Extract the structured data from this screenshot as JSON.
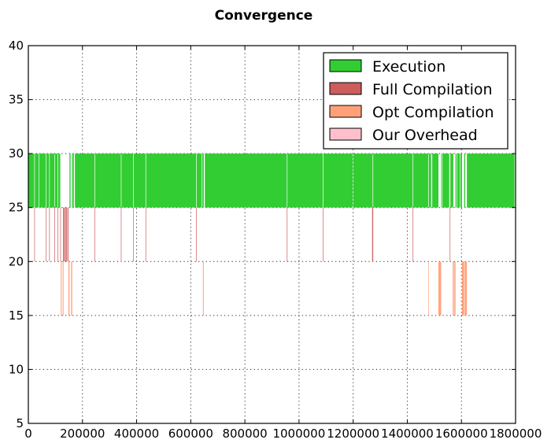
{
  "chart_data": {
    "type": "bar",
    "subtype": "broken-barh",
    "title": "Convergence",
    "xlabel": "",
    "ylabel": "",
    "xlim": [
      0,
      1800000
    ],
    "ylim": [
      5,
      40
    ],
    "xticks": [
      0,
      200000,
      400000,
      600000,
      800000,
      1000000,
      1200000,
      1400000,
      1600000,
      1800000
    ],
    "xtick_labels": [
      "0",
      "200000",
      "400000",
      "600000",
      "800000",
      "1000000",
      "1200000",
      "1400000",
      "1600000",
      "1800000"
    ],
    "yticks": [
      5,
      10,
      15,
      20,
      25,
      30,
      35,
      40
    ],
    "ytick_labels": [
      "5",
      "10",
      "15",
      "20",
      "25",
      "30",
      "35",
      "40"
    ],
    "grid": true,
    "legend_position": "top-right",
    "series": [
      {
        "name": "Execution",
        "color": "#32cd32",
        "y_range": [
          25,
          30
        ],
        "intervals": [
          [
            0,
            22000
          ],
          [
            24000,
            38000
          ],
          [
            40000,
            65000
          ],
          [
            67000,
            77000
          ],
          [
            79000,
            96000
          ],
          [
            98000,
            108000
          ],
          [
            110000,
            118000
          ],
          [
            152000,
            156000
          ],
          [
            162000,
            168000
          ],
          [
            172000,
            245000
          ],
          [
            247000,
            342000
          ],
          [
            344000,
            387000
          ],
          [
            389000,
            433000
          ],
          [
            435000,
            620000
          ],
          [
            622000,
            640000
          ],
          [
            642000,
            648000
          ],
          [
            652000,
            955000
          ],
          [
            957000,
            1088000
          ],
          [
            1090000,
            1198000
          ],
          [
            1200000,
            1272000
          ],
          [
            1274000,
            1420000
          ],
          [
            1422000,
            1478000
          ],
          [
            1480000,
            1488000
          ],
          [
            1492000,
            1515000
          ],
          [
            1525000,
            1528000
          ],
          [
            1530000,
            1555000
          ],
          [
            1559000,
            1570000
          ],
          [
            1578000,
            1582000
          ],
          [
            1584000,
            1594000
          ],
          [
            1596000,
            1602000
          ],
          [
            1610000,
            1614000
          ],
          [
            1620000,
            1796000
          ]
        ]
      },
      {
        "name": "Full Compilation",
        "color": "#cd5c5c",
        "y_range": [
          20,
          25
        ],
        "intervals": [
          [
            22000,
            24000
          ],
          [
            65000,
            67000
          ],
          [
            77000,
            79000
          ],
          [
            96000,
            98000
          ],
          [
            108000,
            110000
          ],
          [
            118000,
            120000
          ],
          [
            128000,
            132000
          ],
          [
            134000,
            138000
          ],
          [
            140000,
            143000
          ],
          [
            145000,
            148000
          ],
          [
            245000,
            247000
          ],
          [
            342000,
            344000
          ],
          [
            387000,
            389000
          ],
          [
            433000,
            435000
          ],
          [
            620000,
            622000
          ],
          [
            955000,
            957000
          ],
          [
            1088000,
            1090000
          ],
          [
            1270000,
            1272000
          ],
          [
            1272000,
            1274000
          ],
          [
            1420000,
            1422000
          ],
          [
            1557000,
            1559000
          ]
        ]
      },
      {
        "name": "Opt Compilation",
        "color": "#ffa07a",
        "y_range": [
          15,
          20
        ],
        "intervals": [
          [
            120000,
            123000
          ],
          [
            127000,
            130000
          ],
          [
            148000,
            152000
          ],
          [
            158000,
            162000
          ],
          [
            645000,
            648000
          ],
          [
            1478000,
            1480000
          ],
          [
            1515000,
            1520000
          ],
          [
            1520000,
            1525000
          ],
          [
            1568000,
            1572000
          ],
          [
            1574000,
            1578000
          ],
          [
            1602000,
            1610000
          ],
          [
            1612000,
            1620000
          ]
        ]
      },
      {
        "name": "Our Overhead",
        "color": "#ffc0cb",
        "y_range": [
          10,
          15
        ],
        "intervals": []
      }
    ]
  }
}
